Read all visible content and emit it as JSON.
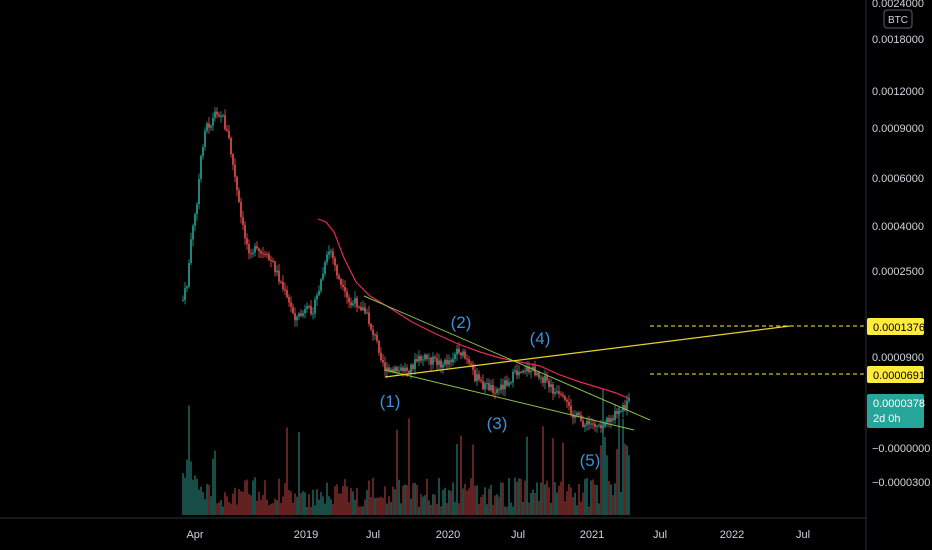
{
  "currency_badge": "BTC",
  "chart_data": {
    "type": "candlestick",
    "scale": "log",
    "x_ticks": [
      "Apr",
      "2019",
      "Jul",
      "2020",
      "Jul",
      "2021",
      "Jul",
      "2022",
      "Jul"
    ],
    "y_ticks": [
      "0.0024000",
      "0.0018000",
      "0.0012000",
      "0.0009000",
      "0.0006000",
      "0.0004000",
      "0.0002500",
      "0.0000900",
      "−0.0000000",
      "−0.0000300"
    ],
    "price_tags": [
      {
        "label": "0.0001376",
        "style": "yellow"
      },
      {
        "label": "0.0000691",
        "style": "yellow"
      },
      {
        "label": "0.0000378",
        "sub": "2d 0h",
        "style": "teal"
      }
    ],
    "wave_labels": [
      "(1)",
      "(2)",
      "(3)",
      "(4)",
      "(5)"
    ],
    "series": [
      {
        "name": "price",
        "kind": "candles"
      },
      {
        "name": "moving-average",
        "kind": "line",
        "color": "#e8275a"
      },
      {
        "name": "volume",
        "kind": "bars"
      }
    ],
    "colors": {
      "up": "#26a69a",
      "down": "#ef5350",
      "ma": "#e8275a",
      "channel": "#8bc34a",
      "trend": "#e6d22e",
      "tag_teal": "#26a69a",
      "tag_yellow": "#ffeb3b"
    }
  }
}
